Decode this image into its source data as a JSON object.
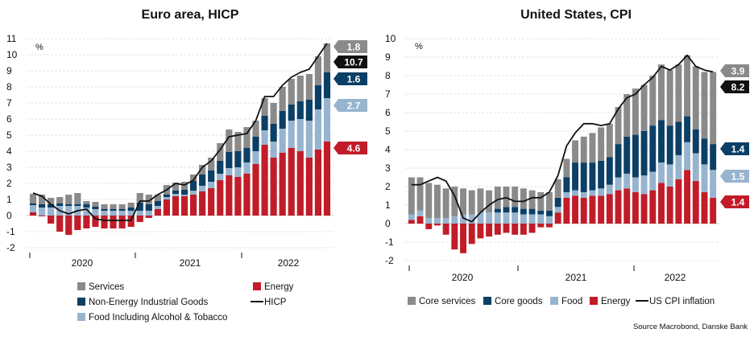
{
  "colors": {
    "services": "#8a8a8a",
    "goods": "#0b3f66",
    "food": "#97b4cf",
    "energy": "#c11c28",
    "line": "#111111",
    "grid": "#d6d6d6"
  },
  "source": "Source Macrobond, Danske Bank",
  "chart_data": [
    {
      "type": "bar",
      "stacked": true,
      "title": "Euro area, HICP",
      "ylabel": "%",
      "ylim": [
        -2,
        11
      ],
      "yticks": [
        "-2",
        "-1",
        "0",
        "1",
        "2",
        "3",
        "4",
        "5",
        "6",
        "7",
        "8",
        "9",
        "10",
        "11"
      ],
      "year_labels": [
        "2020",
        "2021",
        "2022"
      ],
      "periods": [
        "2020-01",
        "2020-02",
        "2020-03",
        "2020-04",
        "2020-05",
        "2020-06",
        "2020-07",
        "2020-08",
        "2020-09",
        "2020-10",
        "2020-11",
        "2020-12",
        "2021-01",
        "2021-02",
        "2021-03",
        "2021-04",
        "2021-05",
        "2021-06",
        "2021-07",
        "2021-08",
        "2021-09",
        "2021-10",
        "2021-11",
        "2021-12",
        "2022-01",
        "2022-02",
        "2022-03",
        "2022-04",
        "2022-05",
        "2022-06",
        "2022-07",
        "2022-08",
        "2022-09",
        "2022-10"
      ],
      "series": [
        {
          "name": "Energy",
          "key": "energy",
          "values": [
            0.2,
            -0.05,
            -0.5,
            -1.0,
            -1.2,
            -0.9,
            -0.8,
            -0.7,
            -0.8,
            -0.8,
            -0.8,
            -0.7,
            -0.4,
            -0.15,
            0.4,
            1.0,
            1.2,
            1.2,
            1.3,
            1.5,
            1.7,
            2.2,
            2.5,
            2.4,
            2.6,
            3.2,
            4.4,
            3.6,
            3.9,
            4.2,
            4.0,
            3.6,
            4.1,
            4.6
          ]
        },
        {
          "name": "Food Including Alcohol & Tobacco",
          "key": "food",
          "values": [
            0.45,
            0.5,
            0.5,
            0.6,
            0.6,
            0.6,
            0.5,
            0.4,
            0.3,
            0.3,
            0.3,
            0.3,
            0.3,
            0.3,
            0.2,
            0.15,
            0.15,
            0.1,
            0.25,
            0.35,
            0.4,
            0.4,
            0.45,
            0.6,
            0.7,
            0.8,
            0.9,
            1.0,
            1.5,
            1.7,
            2.0,
            2.3,
            2.5,
            2.7
          ]
        },
        {
          "name": "Non-Energy Industrial Goods",
          "key": "goods",
          "values": [
            0.1,
            0.2,
            0.2,
            0.15,
            0.1,
            0.1,
            0.2,
            0.15,
            0.1,
            0.1,
            0.1,
            0.2,
            0.5,
            0.4,
            0.3,
            0.15,
            0.2,
            0.3,
            0.6,
            0.7,
            0.7,
            0.8,
            1.0,
            1.0,
            0.9,
            0.9,
            0.9,
            1.1,
            1.1,
            1.0,
            1.1,
            1.3,
            1.5,
            1.6
          ]
        },
        {
          "name": "Services",
          "key": "services",
          "values": [
            0.6,
            0.6,
            0.4,
            0.4,
            0.6,
            0.7,
            0.2,
            0.3,
            0.3,
            0.3,
            0.3,
            0.3,
            0.6,
            0.6,
            0.4,
            0.6,
            0.5,
            0.5,
            0.4,
            0.6,
            0.8,
            1.1,
            1.4,
            1.2,
            1.3,
            1.0,
            1.1,
            1.3,
            1.5,
            1.6,
            1.6,
            1.6,
            1.8,
            1.8
          ]
        }
      ],
      "line": {
        "name": "HICP",
        "key": "line",
        "values": [
          1.4,
          1.2,
          0.7,
          0.3,
          0.1,
          0.3,
          0.4,
          -0.2,
          -0.3,
          -0.3,
          -0.3,
          -0.3,
          0.9,
          0.9,
          1.3,
          1.6,
          2.0,
          1.9,
          2.2,
          3.0,
          3.4,
          4.1,
          4.9,
          5.0,
          5.1,
          5.9,
          7.4,
          7.4,
          8.1,
          8.6,
          8.9,
          9.1,
          9.9,
          10.7
        ]
      },
      "end_labels": [
        {
          "value": "1.8",
          "key": "services"
        },
        {
          "value": "10.7",
          "key": "line"
        },
        {
          "value": "1.6",
          "key": "goods"
        },
        {
          "value": "2.7",
          "key": "food"
        },
        {
          "value": "4.6",
          "key": "energy"
        }
      ],
      "legend": [
        {
          "label": "Services",
          "key": "services",
          "kind": "box"
        },
        {
          "label": "Energy",
          "key": "energy",
          "kind": "box"
        },
        {
          "label": "Non-Energy Industrial Goods",
          "key": "goods",
          "kind": "box"
        },
        {
          "label": "HICP",
          "key": "line",
          "kind": "line"
        },
        {
          "label": "Food Including Alcohol & Tobacco",
          "key": "food",
          "kind": "box"
        }
      ]
    },
    {
      "type": "bar",
      "stacked": true,
      "title": "United States, CPI",
      "ylabel": "%",
      "ylim": [
        -2,
        10
      ],
      "yticks": [
        "-2",
        "-1",
        "0",
        "1",
        "2",
        "3",
        "4",
        "5",
        "6",
        "7",
        "8",
        "9",
        "10"
      ],
      "year_labels": [
        "2020",
        "2021",
        "2022"
      ],
      "periods": [
        "2019-10",
        "2019-11",
        "2019-12",
        "2020-01",
        "2020-02",
        "2020-03",
        "2020-04",
        "2020-05",
        "2020-06",
        "2020-07",
        "2020-08",
        "2020-09",
        "2020-10",
        "2020-11",
        "2020-12",
        "2021-01",
        "2021-02",
        "2021-03",
        "2021-04",
        "2021-05",
        "2021-06",
        "2021-07",
        "2021-08",
        "2021-09",
        "2021-10",
        "2021-11",
        "2021-12",
        "2022-01",
        "2022-02",
        "2022-03",
        "2022-04",
        "2022-05",
        "2022-06",
        "2022-07",
        "2022-08",
        "2022-09"
      ],
      "series": [
        {
          "name": "Energy",
          "key": "energy",
          "values": [
            0.2,
            0.4,
            -0.3,
            -0.1,
            -0.6,
            -1.4,
            -1.6,
            -1.1,
            -0.8,
            -0.7,
            -0.6,
            -0.5,
            -0.6,
            -0.6,
            -0.5,
            -0.2,
            -0.2,
            0.6,
            1.4,
            1.5,
            1.4,
            1.5,
            1.5,
            1.6,
            1.8,
            1.9,
            1.7,
            1.6,
            1.8,
            2.2,
            2.0,
            2.4,
            2.9,
            2.3,
            1.7,
            1.4
          ]
        },
        {
          "name": "Food",
          "key": "food",
          "values": [
            0.3,
            0.3,
            0.3,
            0.3,
            0.3,
            0.4,
            0.5,
            0.5,
            0.6,
            0.6,
            0.6,
            0.6,
            0.6,
            0.5,
            0.5,
            0.5,
            0.4,
            0.3,
            0.3,
            0.3,
            0.3,
            0.3,
            0.4,
            0.5,
            0.7,
            0.8,
            0.8,
            1.0,
            1.0,
            1.1,
            1.2,
            1.3,
            1.5,
            1.5,
            1.5,
            1.5
          ]
        },
        {
          "name": "Core goods",
          "key": "goods",
          "values": [
            0.0,
            0.0,
            0.0,
            0.0,
            0.0,
            0.0,
            0.0,
            0.0,
            0.0,
            0.0,
            0.2,
            0.3,
            0.3,
            0.3,
            0.3,
            0.2,
            0.3,
            0.5,
            0.8,
            1.5,
            1.6,
            1.5,
            1.5,
            1.5,
            1.8,
            2.0,
            2.3,
            2.4,
            2.5,
            2.3,
            2.1,
            1.8,
            1.4,
            1.3,
            1.4,
            1.4
          ]
        },
        {
          "name": "Core services",
          "key": "services",
          "values": [
            2.0,
            1.8,
            1.9,
            1.8,
            1.6,
            1.6,
            1.4,
            1.3,
            1.3,
            1.2,
            1.2,
            1.1,
            1.1,
            1.1,
            1.0,
            1.0,
            1.0,
            1.0,
            1.0,
            1.2,
            1.4,
            1.6,
            1.8,
            1.8,
            2.0,
            2.3,
            2.5,
            2.5,
            2.7,
            3.0,
            3.0,
            3.1,
            3.3,
            3.4,
            3.6,
            3.9
          ]
        }
      ],
      "line": {
        "name": "US CPI inflation",
        "key": "line",
        "values": [
          2.1,
          2.1,
          2.3,
          2.5,
          2.3,
          1.5,
          0.3,
          0.1,
          0.6,
          1.0,
          1.3,
          1.4,
          1.2,
          1.2,
          1.4,
          1.4,
          1.7,
          2.6,
          4.2,
          4.9,
          5.4,
          5.4,
          5.3,
          5.4,
          6.2,
          6.8,
          7.0,
          7.5,
          7.9,
          8.5,
          8.3,
          8.6,
          9.1,
          8.5,
          8.3,
          8.2
        ]
      },
      "end_labels": [
        {
          "value": "3.9",
          "key": "services"
        },
        {
          "value": "8.2",
          "key": "line"
        },
        {
          "value": "1.4",
          "key": "goods"
        },
        {
          "value": "1.5",
          "key": "food"
        },
        {
          "value": "1.4",
          "key": "energy"
        }
      ],
      "legend": [
        {
          "label": "Core services",
          "key": "services",
          "kind": "box"
        },
        {
          "label": "Core goods",
          "key": "goods",
          "kind": "box"
        },
        {
          "label": "Food",
          "key": "food",
          "kind": "box"
        },
        {
          "label": "Energy",
          "key": "energy",
          "kind": "box"
        },
        {
          "label": "US CPI inflation",
          "key": "line",
          "kind": "line"
        }
      ]
    }
  ]
}
